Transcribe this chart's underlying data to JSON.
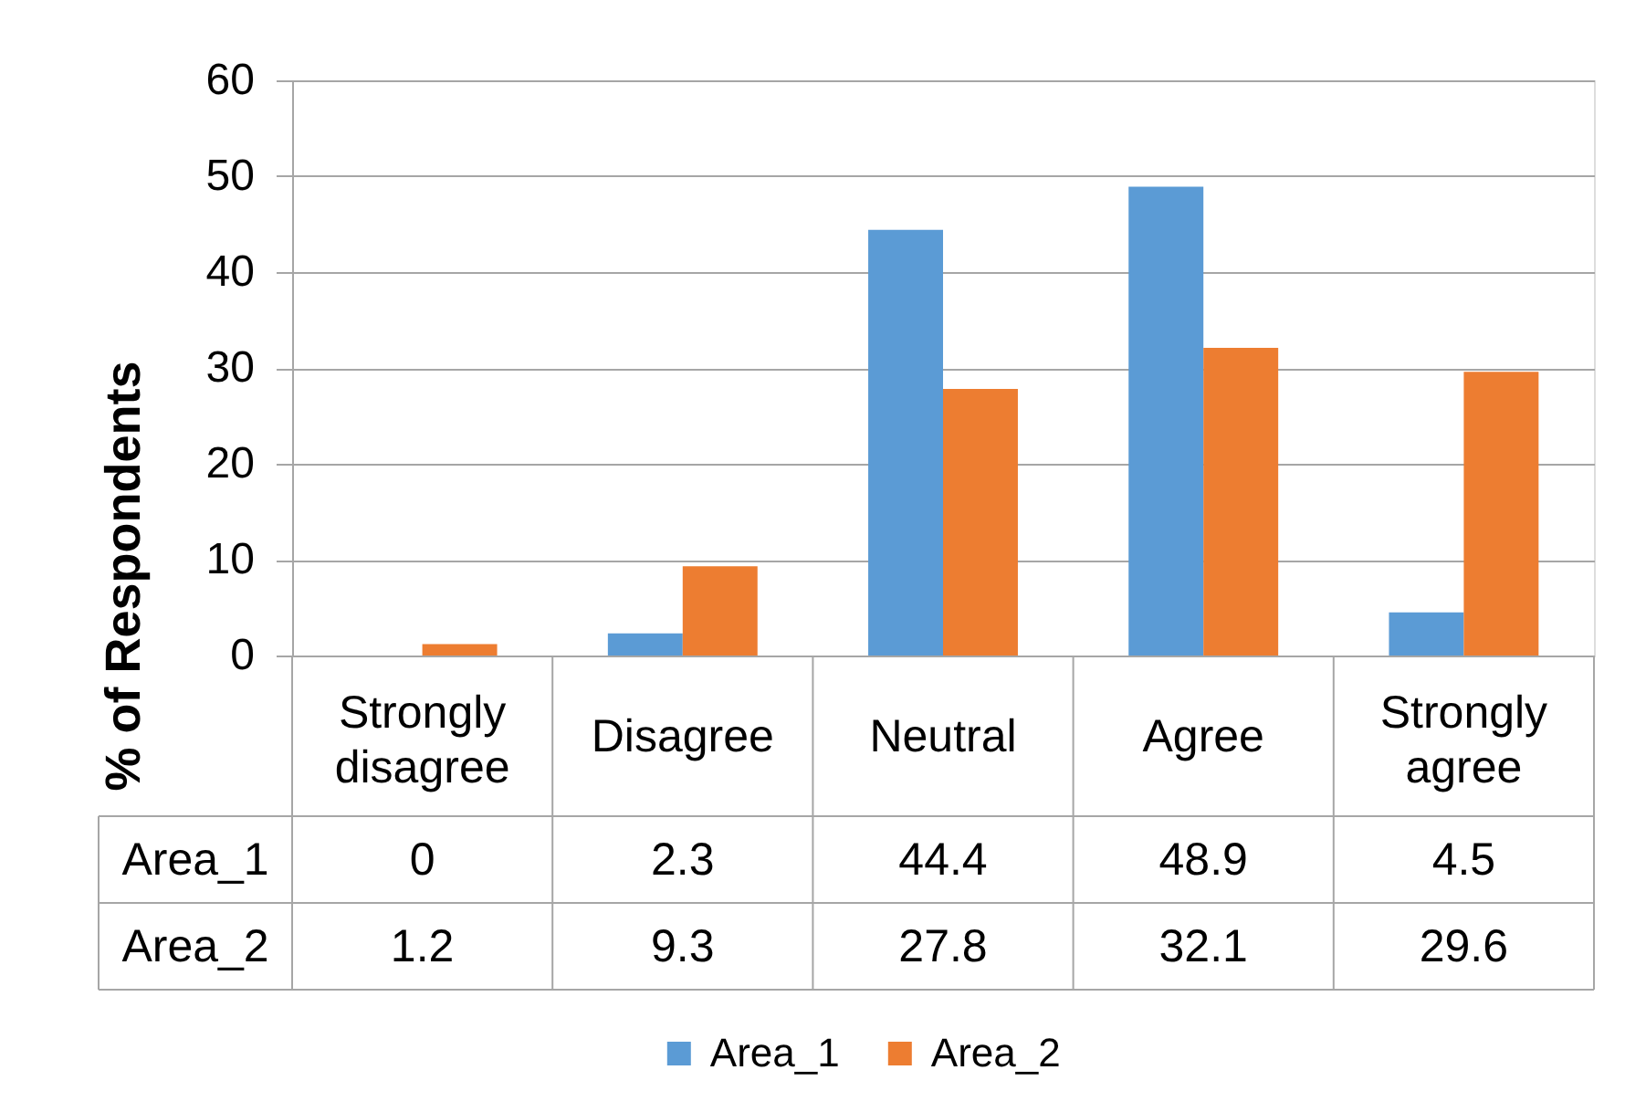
{
  "chart_data": {
    "type": "bar",
    "ylabel": "% of Respondents",
    "categories": [
      "Strongly disagree",
      "Disagree",
      "Neutral",
      "Agree",
      "Strongly agree"
    ],
    "series": [
      {
        "name": "Area_1",
        "color": "#5b9bd5",
        "values": [
          0,
          2.3,
          44.4,
          48.9,
          4.5
        ]
      },
      {
        "name": "Area_2",
        "color": "#ed7d31",
        "values": [
          1.2,
          9.3,
          27.8,
          32.1,
          29.6
        ]
      }
    ],
    "ylim": [
      0,
      60
    ],
    "yticks": [
      0,
      10,
      20,
      30,
      40,
      50,
      60
    ],
    "grid": "y",
    "legend": "bottom",
    "data_labels": true
  }
}
